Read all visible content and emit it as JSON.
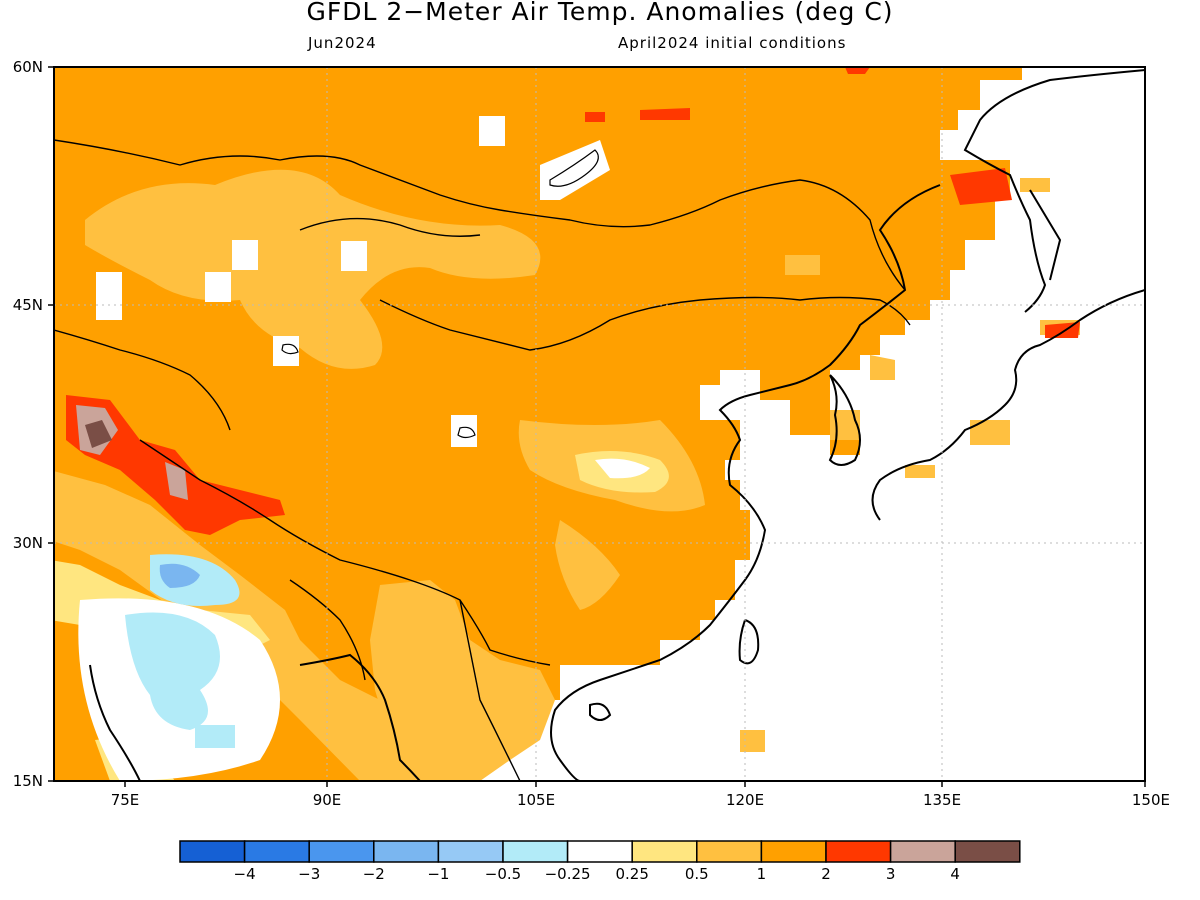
{
  "title": "GFDL 2−Meter Air Temp. Anomalies (deg C)",
  "subtitle_left": "Jun2024",
  "subtitle_right": "April2024 initial conditions",
  "map": {
    "lat_ticks": [
      "60N",
      "45N",
      "30N",
      "15N"
    ],
    "lon_ticks": [
      "75E",
      "90E",
      "105E",
      "120E",
      "135E",
      "150E"
    ]
  },
  "colorbar": {
    "labels": [
      "−4",
      "−3",
      "−2",
      "−1",
      "−0.5",
      "−0.25",
      "0.25",
      "0.5",
      "1",
      "2",
      "3",
      "4"
    ],
    "colors": [
      "#1560d4",
      "#2a7ae4",
      "#4a96ee",
      "#7ab6f0",
      "#96c9f5",
      "#b2ebf8",
      "#ffffff",
      "#ffe680",
      "#ffc040",
      "#ffa000",
      "#ff3800",
      "#caa49a",
      "#7a4e46"
    ]
  },
  "colors": {
    "land_main": "#ffa000",
    "anomaly_light": "#ffc040",
    "anomaly_pale": "#ffe680",
    "anomaly_hot": "#ff3800",
    "anomaly_veryhot": "#caa49a",
    "anomaly_extreme": "#7a4e46",
    "anomaly_cool": "#b2ebf8",
    "anomaly_cooler": "#96c9f5",
    "ocean": "#ffffff"
  }
}
